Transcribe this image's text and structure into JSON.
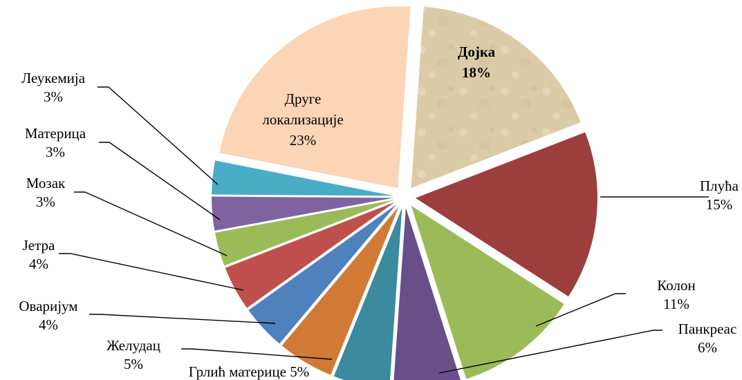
{
  "chart_data": {
    "type": "pie",
    "title": "",
    "exploded": true,
    "slices": [
      {
        "name": "Дојка",
        "value": 18,
        "value_label": "18%",
        "color": "#d9c9a3",
        "label_style": "bold-inside"
      },
      {
        "name": "Плућа",
        "value": 15,
        "value_label": "15%",
        "color": "#9b3e3d",
        "label_style": "outside"
      },
      {
        "name": "Колон",
        "value": 11,
        "value_label": "11%",
        "color": "#9bbb59",
        "label_style": "outside"
      },
      {
        "name": "Панкреас",
        "value": 6,
        "value_label": "6%",
        "color": "#684f8a",
        "label_style": "outside"
      },
      {
        "name": "Грлић материце",
        "value": 5,
        "value_label": "5%",
        "color": "#3b8a9e",
        "label_style": "outside"
      },
      {
        "name": "Желудац",
        "value": 5,
        "value_label": "5%",
        "color": "#d07a35",
        "label_style": "outside"
      },
      {
        "name": "Оваријум",
        "value": 4,
        "value_label": "4%",
        "color": "#4f81bd",
        "label_style": "outside"
      },
      {
        "name": "Јетра",
        "value": 4,
        "value_label": "4%",
        "color": "#c0504d",
        "label_style": "outside"
      },
      {
        "name": "Мозак",
        "value": 3,
        "value_label": "3%",
        "color": "#9bbb59",
        "label_style": "outside"
      },
      {
        "name": "Материца",
        "value": 3,
        "value_label": "3%",
        "color": "#8064a2",
        "label_style": "outside"
      },
      {
        "name": "Леукемија",
        "value": 3,
        "value_label": "3%",
        "color": "#4bacc6",
        "label_style": "outside"
      },
      {
        "name": "Друге локализације",
        "name_lines": [
          "Друге",
          "локализације"
        ],
        "value": 23,
        "value_label": "23%",
        "color": "#fbd5b5",
        "label_style": "inside"
      }
    ]
  }
}
